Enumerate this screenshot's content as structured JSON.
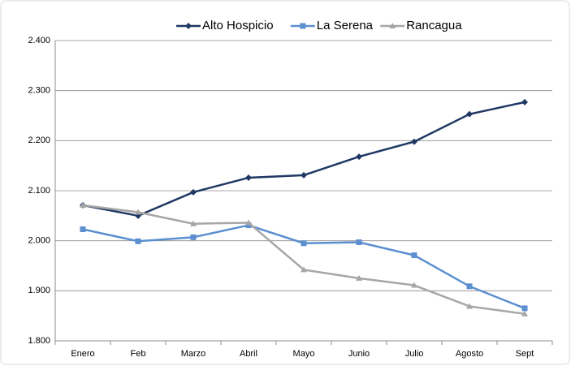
{
  "chart_data": {
    "type": "line",
    "categories": [
      "Enero",
      "Feb",
      "Marzo",
      "Abril",
      "Mayo",
      "Junio",
      "Julio",
      "Agosto",
      "Sept"
    ],
    "series": [
      {
        "name": "Alto Hospicio",
        "color": "#1f3864",
        "marker": "diamond",
        "values": [
          2071,
          2050,
          2097,
          2126,
          2131,
          2168,
          2198,
          2253,
          2277
        ]
      },
      {
        "name": "La Serena",
        "color": "#5b8fd0",
        "marker": "square",
        "values": [
          2023,
          1999,
          2007,
          2031,
          1995,
          1997,
          1971,
          1909,
          1865
        ]
      },
      {
        "name": "Rancagua",
        "color": "#a6a6a6",
        "marker": "triangle",
        "values": [
          2071,
          2057,
          2034,
          2036,
          1942,
          1925,
          1911,
          1869,
          1854
        ]
      }
    ],
    "ylim": [
      1800,
      2400
    ],
    "yticks": [
      {
        "value": 1800,
        "label": "1.800"
      },
      {
        "value": 1900,
        "label": "1.900"
      },
      {
        "value": 2000,
        "label": "2.000"
      },
      {
        "value": 2100,
        "label": "2.100"
      },
      {
        "value": 2200,
        "label": "2.200"
      },
      {
        "value": 2300,
        "label": "2.300"
      },
      {
        "value": 2400,
        "label": "2.400"
      }
    ],
    "grid": true,
    "legend": "top"
  }
}
